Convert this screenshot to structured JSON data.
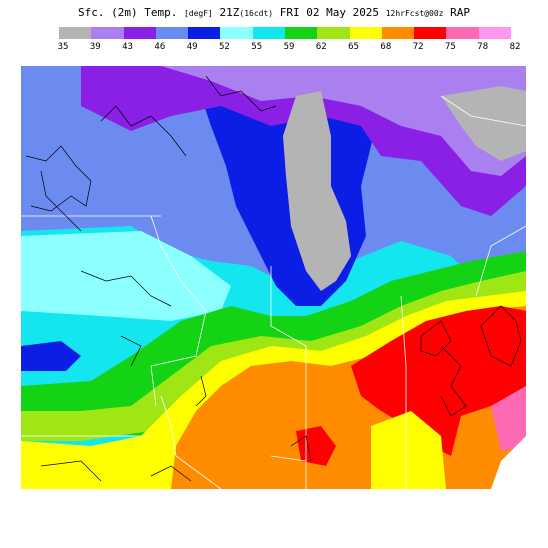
{
  "header": {
    "product": "Sfc. (2m) Temp.",
    "units": "[degF]",
    "valid_time": "21Z",
    "local_time": "(16cdt)",
    "date": "FRI 02 May 2025",
    "forecast": "12hrFcst@00z",
    "model": "RAP"
  },
  "legend": {
    "colors": [
      "#b4b4b4",
      "#aa80f0",
      "#8a1fe6",
      "#6b8bf0",
      "#0a1ee6",
      "#8cffff",
      "#14e6f0",
      "#14d214",
      "#a0e614",
      "#ffff00",
      "#ff8c00",
      "#ff0000",
      "#ff69b4",
      "#ff96f0"
    ],
    "labels": [
      "35",
      "39",
      "43",
      "46",
      "49",
      "52",
      "55",
      "59",
      "62",
      "65",
      "68",
      "72",
      "75",
      "78",
      "82"
    ]
  },
  "map": {
    "region": "Great Lakes / Upper Midwest",
    "colors": {
      "t43": "#8a1fe6",
      "t46": "#6b8bf0",
      "t49": "#0a1ee6",
      "t52": "#8cffff",
      "t55": "#14e6f0",
      "t59": "#14d214",
      "t62": "#a0e614",
      "t65": "#ffff00",
      "t68": "#ff8c00",
      "t72": "#ff0000",
      "t75": "#ff69b4",
      "t39": "#aa80f0",
      "t35": "#b4b4b4",
      "t78": "#ff96f0",
      "t82": "#ffffff"
    }
  }
}
